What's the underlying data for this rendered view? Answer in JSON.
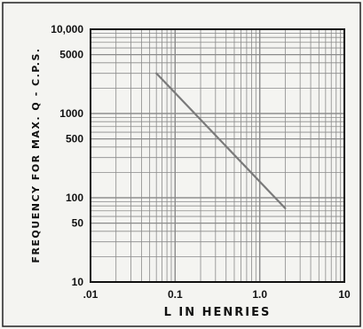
{
  "chart_data": {
    "type": "line",
    "title": "",
    "xlabel": "L IN HENRIES",
    "ylabel": "FREQUENCY FOR MAX. Q - C.P.S.",
    "xscale": "log",
    "yscale": "log",
    "xlim": [
      0.01,
      10
    ],
    "ylim": [
      10,
      10000
    ],
    "x_tick_labels": [
      ".01",
      "0.1",
      "1.0",
      "10"
    ],
    "y_tick_labels": [
      "10",
      "50",
      "100",
      "500",
      "1000",
      "5000",
      "10,000"
    ],
    "grid": true,
    "series": [
      {
        "x": [
          0.06,
          2.0
        ],
        "y": [
          3000,
          75
        ]
      }
    ],
    "colors": {
      "line": "#7a7a7a",
      "grid": "#8a8a8a",
      "frame": "#111111",
      "background": "#f4f4f1"
    }
  }
}
